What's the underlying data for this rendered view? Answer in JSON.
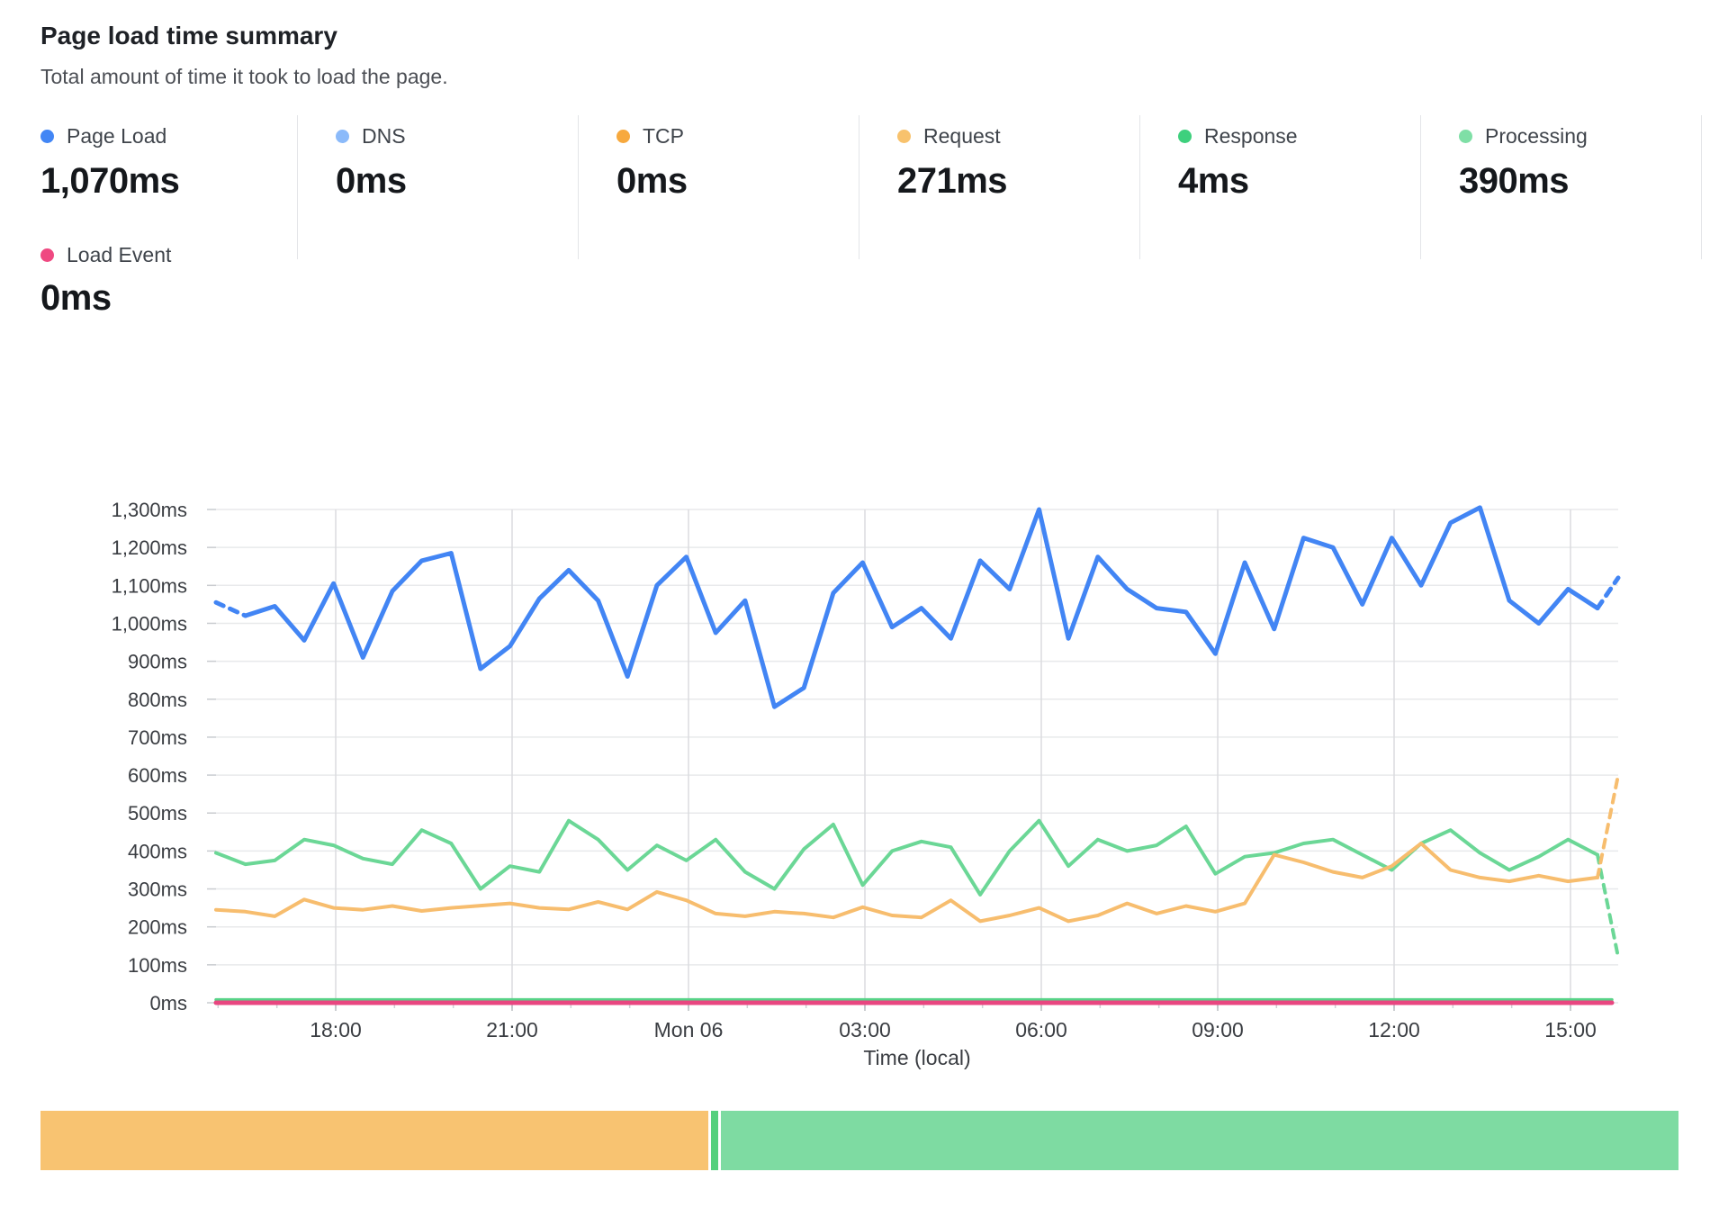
{
  "header": {
    "title": "Page load time summary",
    "subtitle": "Total amount of time it took to load the page."
  },
  "stats": [
    {
      "label": "Page Load",
      "value": "1,070ms",
      "dot_color": "#4286f5"
    },
    {
      "label": "DNS",
      "value": "0ms",
      "dot_color": "#8bbafa"
    },
    {
      "label": "TCP",
      "value": "0ms",
      "dot_color": "#f7a93e"
    },
    {
      "label": "Request",
      "value": "271ms",
      "dot_color": "#f8c26d"
    },
    {
      "label": "Response",
      "value": "4ms",
      "dot_color": "#3ed07d"
    },
    {
      "label": "Processing",
      "value": "390ms",
      "dot_color": "#7fdfa6"
    }
  ],
  "stats_row2": [
    {
      "label": "Load Event",
      "value": "0ms",
      "dot_color": "#ef4981"
    }
  ],
  "chart_data": {
    "type": "line",
    "title": "Page load time summary",
    "xlabel": "Time (local)",
    "ylabel": "",
    "ylim": [
      0,
      1300
    ],
    "y_tick_step": 100,
    "y_tick_labels": [
      "0ms",
      "100ms",
      "200ms",
      "300ms",
      "400ms",
      "500ms",
      "600ms",
      "700ms",
      "800ms",
      "900ms",
      "1,000ms",
      "1,100ms",
      "1,200ms",
      "1,300ms"
    ],
    "x_tick_labels": [
      "18:00",
      "21:00",
      "Mon 06",
      "03:00",
      "06:00",
      "09:00",
      "12:00",
      "15:00"
    ],
    "grid": true,
    "legend_position": "top-stats",
    "sample_interval_minutes": 30,
    "series": [
      {
        "name": "DNS",
        "color": "#8bbafa",
        "width": 3.5,
        "flat_value": 0
      },
      {
        "name": "TCP",
        "color": "#f7a93e",
        "width": 3.5,
        "flat_value": 0
      },
      {
        "name": "Response",
        "color": "#57d287",
        "width": 3.5,
        "flat_value": 8
      },
      {
        "name": "Processing",
        "color": "#6bd796",
        "width": 4,
        "values": [
          395,
          365,
          375,
          430,
          415,
          380,
          365,
          455,
          420,
          300,
          360,
          345,
          480,
          430,
          350,
          415,
          375,
          430,
          345,
          300,
          405,
          470,
          310,
          400,
          425,
          410,
          285,
          400,
          480,
          360,
          430,
          400,
          415,
          465,
          340,
          385,
          395,
          420,
          430,
          390,
          350,
          420,
          455,
          395,
          350,
          385,
          430,
          390
        ],
        "projected": 120
      },
      {
        "name": "Request",
        "color": "#f7bd6e",
        "width": 4,
        "values": [
          245,
          240,
          228,
          272,
          250,
          245,
          255,
          242,
          250,
          256,
          262,
          250,
          246,
          266,
          246,
          292,
          270,
          235,
          228,
          240,
          235,
          225,
          252,
          230,
          225,
          270,
          215,
          230,
          250,
          215,
          230,
          262,
          235,
          255,
          240,
          262,
          390,
          370,
          345,
          330,
          360,
          420,
          350,
          330,
          320,
          335,
          320,
          330
        ],
        "projected": 600
      },
      {
        "name": "Load Event",
        "color": "#e84680",
        "width": 5,
        "flat_value": 0
      },
      {
        "name": "Page Load",
        "color": "#4285f4",
        "width": 5,
        "dashed_head": true,
        "values": [
          1055,
          1020,
          1045,
          955,
          1105,
          910,
          1085,
          1165,
          1185,
          880,
          940,
          1065,
          1140,
          1060,
          860,
          1100,
          1175,
          975,
          1060,
          780,
          830,
          1080,
          1160,
          990,
          1040,
          960,
          1165,
          1090,
          1300,
          960,
          1175,
          1090,
          1040,
          1030,
          920,
          1160,
          985,
          1225,
          1200,
          1050,
          1225,
          1100,
          1265,
          1305,
          1060,
          1000,
          1090,
          1040
        ],
        "projected": 1120
      }
    ]
  },
  "status_bar": {
    "segments": [
      {
        "name": "segment-orange",
        "color": "#f8c371",
        "fraction": 0.409
      },
      {
        "name": "segment-green-sliver",
        "color": "#55d07d",
        "fraction": 0.0045
      },
      {
        "name": "segment-green",
        "color": "#7edba2",
        "fraction": 0.5865
      }
    ]
  }
}
